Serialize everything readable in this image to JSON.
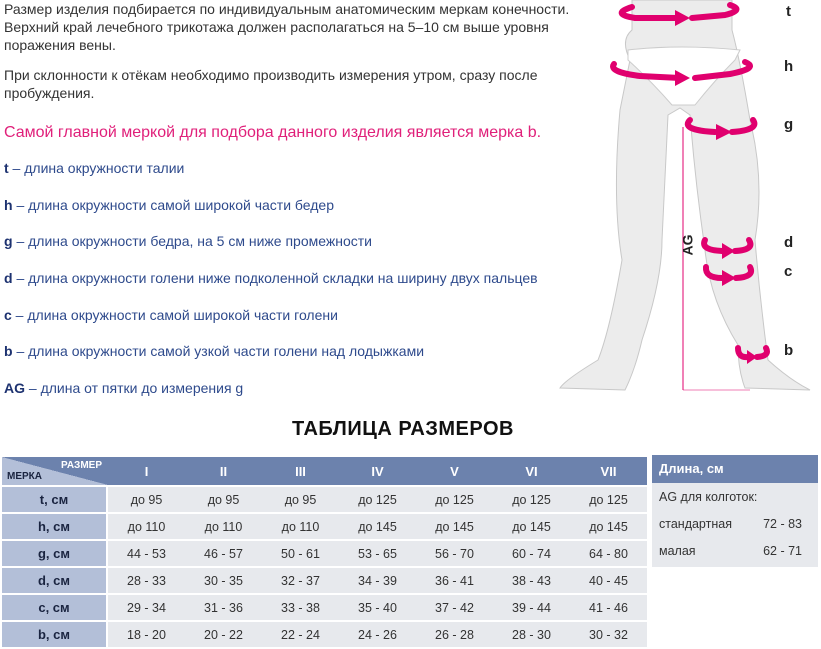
{
  "intro": [
    "Размер изделия подбирается по индивидуальным анатомическим меркам конечности. Верхний край лечебного трикотажа должен располагаться на 5–10 см выше уровня поражения вены.",
    "При склонности к отёкам необходимо производить измерения утром, сразу после пробуждения."
  ],
  "main_note": "Самой главной меркой для подбора данного изделия является мерка b.",
  "definitions": [
    {
      "key": "t",
      "text": " – длина окружности талии"
    },
    {
      "key": "h",
      "text": " – длина окружности самой широкой части бедер"
    },
    {
      "key": "g",
      "text": " – длина окружности бедра, на 5 см ниже промежности"
    },
    {
      "key": "d",
      "text": " – длина окружности голени ниже подколенной складки на ширину двух пальцев"
    },
    {
      "key": "c",
      "text": " – длина окружности самой широкой части голени"
    },
    {
      "key": "b",
      "text": " – длина окружности самой узкой части голени над лодыжками"
    },
    {
      "key": "AG",
      "text": " – длина от пятки до измерения g"
    }
  ],
  "figure": {
    "labels": [
      "t",
      "h",
      "g",
      "d",
      "c",
      "b"
    ],
    "ag_label": "AG",
    "accent": "#e0006e"
  },
  "table_title": "ТАБЛИЦА РАЗМЕРОВ",
  "table": {
    "corner_size": "РАЗМЕР",
    "corner_measure": "МЕРКА",
    "sizes": [
      "I",
      "II",
      "III",
      "IV",
      "V",
      "VI",
      "VII"
    ],
    "rows": [
      {
        "label": "t, см",
        "values": [
          "до 95",
          "до 95",
          "до 95",
          "до 125",
          "до 125",
          "до 125",
          "до 125"
        ]
      },
      {
        "label": "h, см",
        "values": [
          "до 110",
          "до 110",
          "до 110",
          "до 145",
          "до 145",
          "до 145",
          "до 145"
        ]
      },
      {
        "label": "g, см",
        "values": [
          "44 - 53",
          "46 - 57",
          "50 - 61",
          "53 - 65",
          "56 - 70",
          "60 - 74",
          "64 - 80"
        ]
      },
      {
        "label": "d, см",
        "values": [
          "28 - 33",
          "30 - 35",
          "32 - 37",
          "34 - 39",
          "36 - 41",
          "38 - 43",
          "40 - 45"
        ]
      },
      {
        "label": "c, см",
        "values": [
          "29 - 34",
          "31 - 36",
          "33 - 38",
          "35 - 40",
          "37 - 42",
          "39 - 44",
          "41 - 46"
        ]
      },
      {
        "label": "b, см",
        "values": [
          "18 - 20",
          "20 - 22",
          "22 - 24",
          "24 - 26",
          "26 - 28",
          "28 - 30",
          "30 - 32"
        ]
      }
    ]
  },
  "length_panel": {
    "header": "Длина, см",
    "subtitle": "AG для колготок:",
    "rows": [
      {
        "label": "стандартная",
        "value": "72 - 83"
      },
      {
        "label": "малая",
        "value": "62 - 71"
      }
    ]
  },
  "colors": {
    "header": "#6c82ad",
    "label_cell": "#b3bfd8",
    "cell": "#e7e9ed",
    "accent": "#e0207a",
    "text_blue": "#2e4a8c"
  }
}
